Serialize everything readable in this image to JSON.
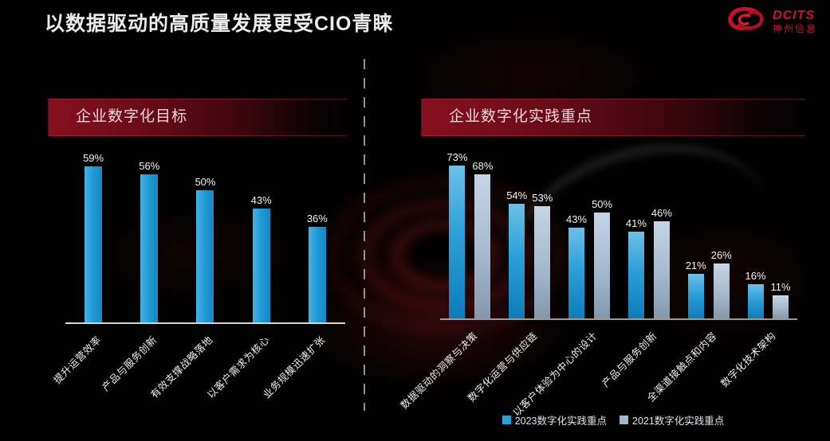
{
  "page": {
    "title": "以数据驱动的高质量发展更受CIO青睐"
  },
  "logo": {
    "brand": "DCITS",
    "subtitle": "神州信息",
    "color": "#c8102e"
  },
  "panels": [
    {
      "header": "企业数字化目标"
    },
    {
      "header": "企业数字化实践重点"
    }
  ],
  "legend": {
    "items": [
      {
        "label": "2023数字化实践重点",
        "color": "#2d9fd8"
      },
      {
        "label": "2021数字化实践重点",
        "color": "#a2b6cb"
      }
    ]
  },
  "chart_data": [
    {
      "type": "bar",
      "title": "企业数字化目标",
      "categories": [
        "提升运营效率",
        "产品与服务创新",
        "有效支撑战略落地",
        "以客户需求为核心",
        "业务规模迅速扩张"
      ],
      "values": [
        59,
        56,
        50,
        43,
        36
      ],
      "unit": "%",
      "bar_color": "#29a1db",
      "ylim": [
        0,
        65
      ],
      "grid": false,
      "legend_position": "none",
      "value_labels": true
    },
    {
      "type": "bar",
      "title": "企业数字化实践重点",
      "categories": [
        "数据驱动的洞察与决策",
        "数字化运营与供应链",
        "以客户体验为中心的设计",
        "产品与服务创新",
        "全渠道接触点和内容",
        "数字化技术架构"
      ],
      "series": [
        {
          "name": "2023数字化实践重点",
          "values": [
            73,
            54,
            43,
            41,
            21,
            16
          ],
          "color": "#2d9fd8"
        },
        {
          "name": "2021数字化实践重点",
          "values": [
            68,
            53,
            50,
            46,
            26,
            11
          ],
          "color": "#a2b6cb"
        }
      ],
      "unit": "%",
      "ylim": [
        0,
        79
      ],
      "grid": false,
      "legend_position": "bottom",
      "value_labels": true
    }
  ]
}
